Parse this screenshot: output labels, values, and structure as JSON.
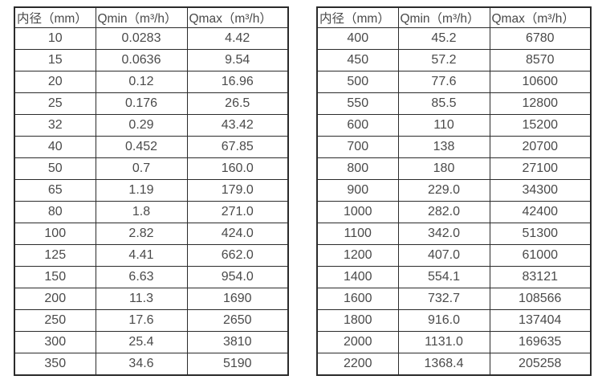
{
  "tables": [
    {
      "name": "small-diameter-flow-table",
      "headers": [
        "内径（mm）",
        "Qmin（m³/h）",
        "Qmax（m³/h）"
      ],
      "rows": [
        [
          "10",
          "0.0283",
          "4.42"
        ],
        [
          "15",
          "0.0636",
          "9.54"
        ],
        [
          "20",
          "0.12",
          "16.96"
        ],
        [
          "25",
          "0.176",
          "26.5"
        ],
        [
          "32",
          "0.29",
          "43.42"
        ],
        [
          "40",
          "0.452",
          "67.85"
        ],
        [
          "50",
          "0.7",
          "160.0"
        ],
        [
          "65",
          "1.19",
          "179.0"
        ],
        [
          "80",
          "1.8",
          "271.0"
        ],
        [
          "100",
          "2.82",
          "424.0"
        ],
        [
          "125",
          "4.41",
          "662.0"
        ],
        [
          "150",
          "6.63",
          "954.0"
        ],
        [
          "200",
          "11.3",
          "1690"
        ],
        [
          "250",
          "17.6",
          "2650"
        ],
        [
          "300",
          "25.4",
          "3810"
        ],
        [
          "350",
          "34.6",
          "5190"
        ]
      ]
    },
    {
      "name": "large-diameter-flow-table",
      "headers": [
        "内径（mm）",
        "Qmin（m³/h）",
        "Qmax（m³/h）"
      ],
      "rows": [
        [
          "400",
          "45.2",
          "6780"
        ],
        [
          "450",
          "57.2",
          "8570"
        ],
        [
          "500",
          "77.6",
          "10600"
        ],
        [
          "550",
          "85.5",
          "12800"
        ],
        [
          "600",
          "110",
          "15200"
        ],
        [
          "700",
          "138",
          "20700"
        ],
        [
          "800",
          "180",
          "27100"
        ],
        [
          "900",
          "229.0",
          "34300"
        ],
        [
          "1000",
          "282.0",
          "42400"
        ],
        [
          "1100",
          "342.0",
          "51300"
        ],
        [
          "1200",
          "407.0",
          "61000"
        ],
        [
          "1400",
          "554.1",
          "83121"
        ],
        [
          "1600",
          "732.7",
          "108566"
        ],
        [
          "1800",
          "916.0",
          "137404"
        ],
        [
          "2000",
          "1131.0",
          "169635"
        ],
        [
          "2200",
          "1368.4",
          "205258"
        ]
      ]
    }
  ],
  "colors": {
    "border": "#2b2b2b",
    "text": "#4a4a4a",
    "background": "#ffffff"
  }
}
